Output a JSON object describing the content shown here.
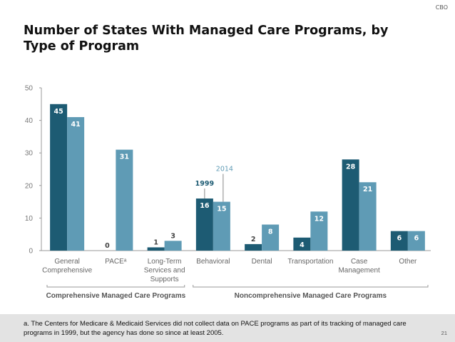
{
  "header": {
    "brand": "CBO",
    "title": "Number of States With Managed Care Programs, by Type of Program"
  },
  "footer": {
    "note": "a. The Centers for Medicare & Medicaid Services did not collect data on PACE programs as part of its tracking of managed care programs in 1999, but the agency has done so since at least 2005.",
    "page_number": "21"
  },
  "chart_data": {
    "type": "bar",
    "title": "Number of States With Managed Care Programs, by Type of Program",
    "xlabel": "",
    "ylabel": "",
    "ylim": [
      0,
      50
    ],
    "yticks": [
      0,
      10,
      20,
      30,
      40,
      50
    ],
    "grid": false,
    "categories": [
      [
        "General",
        "Comprehensive"
      ],
      [
        "PACEᵃ"
      ],
      [
        "Long-Term",
        "Services and",
        "Supports"
      ],
      [
        "Behavioral"
      ],
      [
        "Dental"
      ],
      [
        "Transportation"
      ],
      [
        "Case",
        "Management"
      ],
      [
        "Other"
      ]
    ],
    "series": [
      {
        "name": "1999",
        "color": "#1d5b73",
        "values": [
          45,
          0,
          1,
          16,
          2,
          4,
          28,
          6
        ]
      },
      {
        "name": "2014",
        "color": "#5f9bb5",
        "values": [
          41,
          31,
          3,
          15,
          8,
          12,
          21,
          6
        ]
      }
    ],
    "legend": {
      "placement": "inline-annotation-on-behavioral",
      "labels": [
        "1999",
        "2014"
      ],
      "colors": [
        "#1d5b73",
        "#5f9bb5"
      ]
    },
    "groups": [
      {
        "label": "Comprehensive Managed Care Programs",
        "from": 0,
        "to": 2
      },
      {
        "label": "Noncomprehensive Managed Care Programs",
        "from": 3,
        "to": 7
      }
    ],
    "axis_color": "#999999",
    "label_color_inside": "#ffffff",
    "label_color_outside": "#444444"
  }
}
